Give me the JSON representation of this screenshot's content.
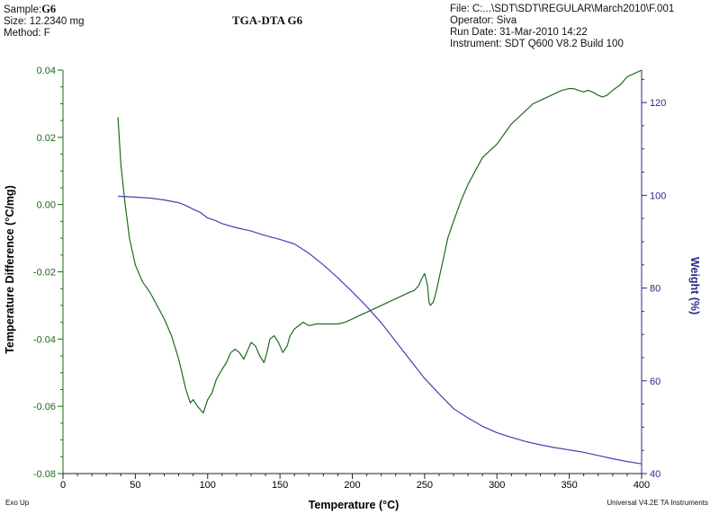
{
  "header": {
    "sample_label": "Sample:",
    "sample_value": "G6",
    "size": "Size:  12.2340 mg",
    "method": "Method: F",
    "file": "File: C:...\\SDT\\SDT\\REGULAR\\March2010\\F.001",
    "operator": "Operator: Siva",
    "run_date": "Run Date: 31-Mar-2010 14:22",
    "instrument": "Instrument: SDT Q600 V8.2 Build 100"
  },
  "footer": {
    "left": "Exo Up",
    "right": "Universal V4.2E TA Instruments"
  },
  "colors": {
    "dta": "#1f6b1f",
    "tga": "#4a3fb0",
    "axis_left": "#1a6b1a",
    "axis_right": "#2a2a8a"
  },
  "chart_data": {
    "type": "line",
    "title": "TGA-DTA  G6",
    "xlabel": "Temperature (°C)",
    "ylabel": "Temperature Difference (°C/mg)",
    "y2label": "Weight (%)",
    "xlim": [
      0,
      400
    ],
    "ylim": [
      -0.08,
      0.04
    ],
    "y2lim": [
      40,
      127
    ],
    "x_ticks": [
      0,
      50,
      100,
      150,
      200,
      250,
      300,
      350,
      400
    ],
    "y_ticks": [
      -0.08,
      -0.06,
      -0.04,
      -0.02,
      0.0,
      0.02,
      0.04
    ],
    "y_tick_labels": [
      "-0.08",
      "-0.06",
      "-0.04",
      "-0.02",
      "0.00",
      "0.02",
      "0.04"
    ],
    "y2_ticks": [
      40,
      60,
      80,
      100,
      120
    ],
    "grid": false,
    "series": [
      {
        "axis": "left",
        "color": "#1f6b1f",
        "x": [
          38,
          40,
          43,
          46,
          50,
          55,
          60,
          65,
          70,
          75,
          80,
          85,
          88,
          90,
          93,
          95,
          97,
          100,
          103,
          106,
          110,
          113,
          116,
          119,
          122,
          125,
          127,
          130,
          133,
          136,
          139,
          141,
          143,
          146,
          149,
          152,
          155,
          157,
          160,
          163,
          166,
          170,
          175,
          180,
          185,
          190,
          195,
          200,
          205,
          210,
          215,
          220,
          225,
          230,
          235,
          240,
          243,
          246,
          248,
          250,
          252,
          253,
          254,
          256,
          258,
          260,
          263,
          266,
          270,
          275,
          280,
          285,
          290,
          295,
          300,
          305,
          310,
          315,
          320,
          325,
          330,
          335,
          340,
          345,
          350,
          353,
          356,
          360,
          363,
          366,
          368,
          370,
          373,
          376,
          380,
          385,
          390,
          395,
          400
        ],
        "y": [
          0.026,
          0.012,
          0.0,
          -0.01,
          -0.018,
          -0.023,
          -0.026,
          -0.03,
          -0.034,
          -0.039,
          -0.046,
          -0.055,
          -0.059,
          -0.058,
          -0.06,
          -0.061,
          -0.062,
          -0.058,
          -0.056,
          -0.052,
          -0.049,
          -0.047,
          -0.044,
          -0.043,
          -0.044,
          -0.046,
          -0.044,
          -0.041,
          -0.042,
          -0.045,
          -0.047,
          -0.044,
          -0.04,
          -0.039,
          -0.041,
          -0.044,
          -0.042,
          -0.039,
          -0.037,
          -0.036,
          -0.035,
          -0.036,
          -0.0355,
          -0.0355,
          -0.0355,
          -0.0355,
          -0.035,
          -0.034,
          -0.033,
          -0.032,
          -0.031,
          -0.03,
          -0.029,
          -0.028,
          -0.027,
          -0.026,
          -0.0255,
          -0.024,
          -0.022,
          -0.0205,
          -0.024,
          -0.029,
          -0.03,
          -0.029,
          -0.026,
          -0.022,
          -0.016,
          -0.01,
          -0.005,
          0.001,
          0.006,
          0.01,
          0.014,
          0.016,
          0.018,
          0.021,
          0.024,
          0.026,
          0.028,
          0.03,
          0.031,
          0.032,
          0.033,
          0.034,
          0.0345,
          0.0345,
          0.034,
          0.0335,
          0.034,
          0.0335,
          0.033,
          0.0325,
          0.032,
          0.0325,
          0.034,
          0.0355,
          0.038,
          0.039,
          0.04
        ]
      },
      {
        "axis": "right",
        "color": "#4a3fb0",
        "x": [
          38,
          50,
          60,
          70,
          80,
          85,
          90,
          95,
          100,
          105,
          110,
          120,
          130,
          140,
          150,
          160,
          170,
          180,
          190,
          200,
          210,
          220,
          230,
          240,
          250,
          260,
          270,
          280,
          290,
          300,
          310,
          320,
          330,
          340,
          350,
          360,
          370,
          380,
          390,
          400
        ],
        "y": [
          99.8,
          99.6,
          99.4,
          99.0,
          98.4,
          97.8,
          97.0,
          96.3,
          95.1,
          94.6,
          93.9,
          93.0,
          92.3,
          91.3,
          90.5,
          89.5,
          87.5,
          85.0,
          82.2,
          79.2,
          76.0,
          72.5,
          68.5,
          64.5,
          60.5,
          57.2,
          54.0,
          52.0,
          50.2,
          48.8,
          47.8,
          46.9,
          46.2,
          45.6,
          45.1,
          44.6,
          43.9,
          43.2,
          42.6,
          42.1
        ]
      }
    ]
  }
}
